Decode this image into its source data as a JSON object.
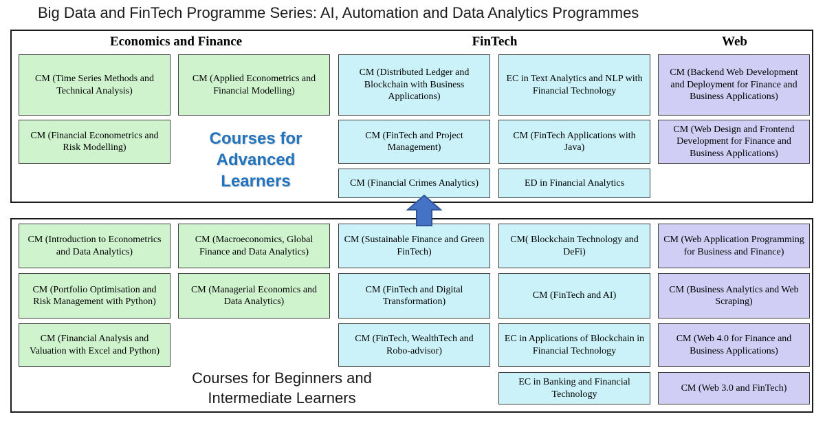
{
  "title": "Big Data and FinTech Programme Series: AI, Automation and Data Analytics Programmes",
  "palette": {
    "economics": "#cff3cd",
    "fintech": "#cbf2f8",
    "web": "#d0cef4"
  },
  "column_headers": [
    "Economics and Finance",
    "FinTech",
    "Web"
  ],
  "arrow": {
    "direction": "up",
    "fill": "#4472c4",
    "stroke": "#2f5597"
  },
  "top_box": {
    "label_lines": [
      "Courses for",
      "Advanced",
      "Learners"
    ],
    "label_color": "#2374be",
    "cells": [
      {
        "row": 1,
        "col": 1,
        "category": "economics",
        "text": "CM (Time Series Methods and Technical Analysis)"
      },
      {
        "row": 1,
        "col": 2,
        "category": "economics",
        "text": "CM (Applied Econometrics and Financial Modelling)"
      },
      {
        "row": 1,
        "col": 3,
        "category": "fintech",
        "text": "CM (Distributed Ledger and Blockchain with Business Applications)"
      },
      {
        "row": 1,
        "col": 4,
        "category": "fintech",
        "text": "EC in Text Analytics and NLP with Financial Technology"
      },
      {
        "row": 1,
        "col": 5,
        "category": "web",
        "text": "CM (Backend Web Development and Deployment for Finance and Business Applications)"
      },
      {
        "row": 2,
        "col": 1,
        "category": "economics",
        "text": "CM (Financial Econometrics and Risk Modelling)"
      },
      {
        "row": 2,
        "col": 3,
        "category": "fintech",
        "text": "CM (FinTech and Project Management)"
      },
      {
        "row": 2,
        "col": 4,
        "category": "fintech",
        "text": "CM (FinTech Applications with Java)"
      },
      {
        "row": 2,
        "col": 5,
        "category": "web",
        "text": "CM (Web Design and Frontend Development for Finance and Business Applications)"
      },
      {
        "row": 3,
        "col": 3,
        "category": "fintech",
        "text": "CM (Financial Crimes Analytics)"
      },
      {
        "row": 3,
        "col": 4,
        "category": "fintech",
        "text": "ED in Financial Analytics"
      }
    ]
  },
  "bottom_box": {
    "label_lines": [
      "Courses for Beginners and",
      "Intermediate Learners"
    ],
    "cells": [
      {
        "row": 1,
        "col": 1,
        "category": "economics",
        "text": "CM (Introduction to Econometrics and Data Analytics)"
      },
      {
        "row": 1,
        "col": 2,
        "category": "economics",
        "text": "CM (Macroeconomics, Global Finance and Data Analytics)"
      },
      {
        "row": 1,
        "col": 3,
        "category": "fintech",
        "text": "CM (Sustainable Finance and Green FinTech)"
      },
      {
        "row": 1,
        "col": 4,
        "category": "fintech",
        "text": "CM( Blockchain Technology and DeFi)"
      },
      {
        "row": 1,
        "col": 5,
        "category": "web",
        "text": "CM (Web Application Programming for Business and Finance)"
      },
      {
        "row": 2,
        "col": 1,
        "category": "economics",
        "text": "CM (Portfolio Optimisation and Risk Management with Python)"
      },
      {
        "row": 2,
        "col": 2,
        "category": "economics",
        "text": "CM (Managerial Economics and Data Analytics)"
      },
      {
        "row": 2,
        "col": 3,
        "category": "fintech",
        "text": "CM (FinTech and Digital Transformation)"
      },
      {
        "row": 2,
        "col": 4,
        "category": "fintech",
        "text": "CM (FinTech and AI)"
      },
      {
        "row": 2,
        "col": 5,
        "category": "web",
        "text": "CM (Business Analytics and Web Scraping)"
      },
      {
        "row": 3,
        "col": 1,
        "category": "economics",
        "text": "CM (Financial Analysis and Valuation with Excel and Python)"
      },
      {
        "row": 3,
        "col": 3,
        "category": "fintech",
        "text": "CM (FinTech, WealthTech and Robo-advisor)"
      },
      {
        "row": 3,
        "col": 4,
        "category": "fintech",
        "text": "EC in Applications of Blockchain in Financial Technology"
      },
      {
        "row": 3,
        "col": 5,
        "category": "web",
        "text": "CM (Web 4.0 for Finance and Business Applications)"
      },
      {
        "row": 4,
        "col": 4,
        "category": "fintech",
        "text": "EC in Banking and Financial Technology"
      },
      {
        "row": 4,
        "col": 5,
        "category": "web",
        "text": "CM (Web 3.0 and FinTech)"
      }
    ]
  }
}
